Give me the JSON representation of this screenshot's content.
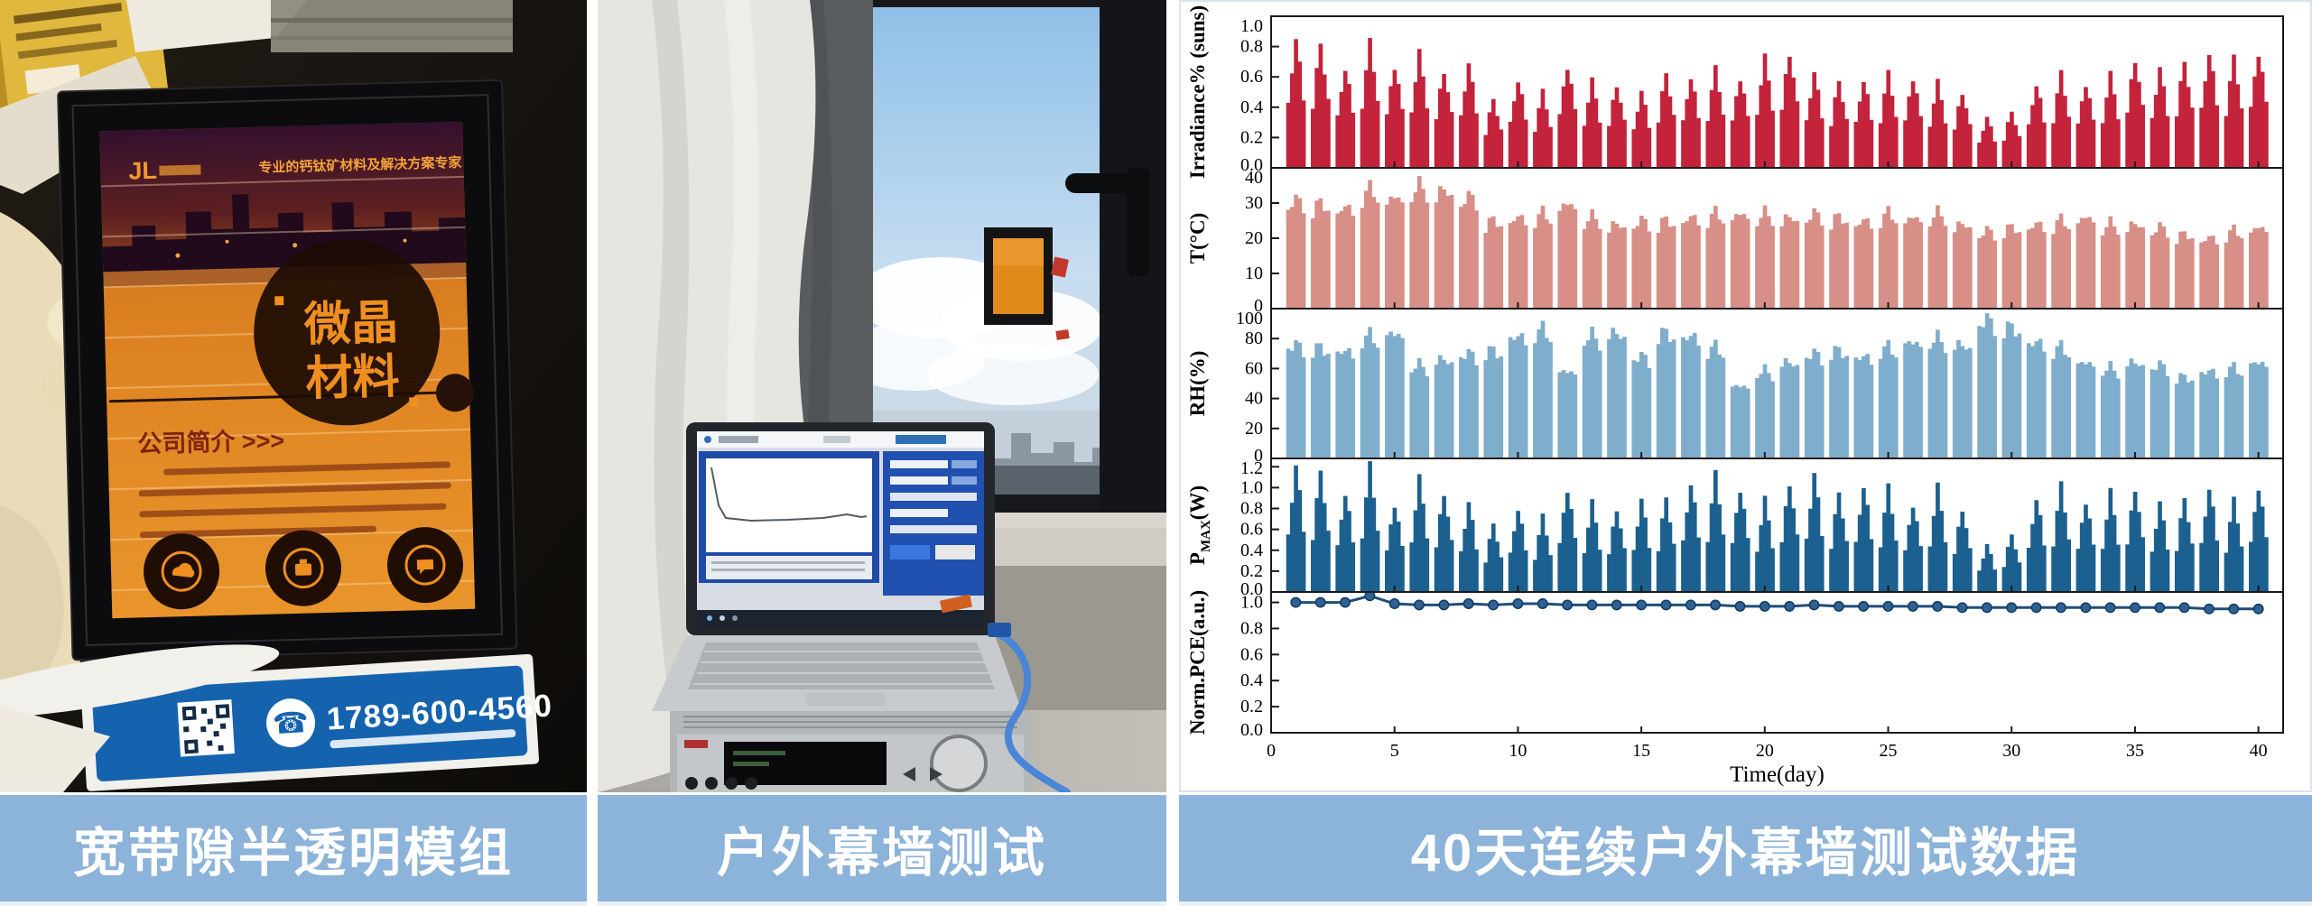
{
  "captions": {
    "left": "宽带隙半透明模组",
    "middle": "户外幕墙测试",
    "right": "40天连续户外幕墙测试数据"
  },
  "colors": {
    "caption_bg": "#8CB3D9",
    "irradiance_bar": "#C3233B",
    "temp_bar": "#D78F87",
    "rh_bar": "#7FADCC",
    "pmax_bar": "#1B608F",
    "pce_line": "#1F4E79",
    "pce_marker": "#2E6295",
    "chart_border": "#D7E4F2",
    "poster_orange": "#E08A1E",
    "card_blue": "#1563AE"
  },
  "icons": {
    "phone": "☎"
  },
  "left_photo": {
    "poster_logo": "JL",
    "poster_header": "专业的钙钛矿材料及解决方案专家",
    "poster_title_line1": "微晶",
    "poster_title_line2": "材料",
    "company_intro_label": "公司简介 >>>",
    "phone_number": "1789-600-4560"
  },
  "chart_data": {
    "type": "multi-panel",
    "title": "40天连续户外幕墙测试数据",
    "xlabel": "Time(day)",
    "xlim": [
      0,
      41
    ],
    "x_ticks": [
      0,
      5,
      10,
      15,
      20,
      25,
      30,
      35,
      40
    ],
    "x_days": [
      1,
      2,
      3,
      4,
      5,
      6,
      7,
      8,
      9,
      10,
      11,
      12,
      13,
      14,
      15,
      16,
      17,
      18,
      19,
      20,
      21,
      22,
      23,
      24,
      25,
      26,
      27,
      28,
      29,
      30,
      31,
      32,
      33,
      34,
      35,
      36,
      37,
      38,
      39,
      40
    ],
    "grid": false,
    "legend": "none",
    "panels": [
      {
        "name": "irradiance",
        "type": "bar",
        "ylabel": "Irradiance% (suns)",
        "ylabel_segments": [
          {
            "text": "Irradiance% (suns)"
          }
        ],
        "ylim": [
          0,
          1.0
        ],
        "yticks": [
          0,
          0.2,
          0.4,
          0.6,
          0.8,
          1.0
        ],
        "ytick_labels": [
          "0.0",
          "0.2",
          "0.4",
          "0.6",
          "0.8",
          "1.0"
        ],
        "color": "#C3233B",
        "daily_peaks": [
          0.84,
          0.81,
          0.66,
          0.82,
          0.68,
          0.75,
          0.64,
          0.68,
          0.45,
          0.58,
          0.5,
          0.68,
          0.57,
          0.55,
          0.5,
          0.62,
          0.6,
          0.65,
          0.6,
          0.72,
          0.76,
          0.62,
          0.57,
          0.58,
          0.62,
          0.6,
          0.56,
          0.5,
          0.33,
          0.37,
          0.55,
          0.62,
          0.56,
          0.61,
          0.72,
          0.65,
          0.7,
          0.76,
          0.72,
          0.77
        ]
      },
      {
        "name": "temperature",
        "type": "bar",
        "ylabel": "T(°C)",
        "ylabel_segments": [
          {
            "text": "T(°C)"
          }
        ],
        "ylim": [
          0,
          40
        ],
        "yticks": [
          0,
          10,
          20,
          30,
          40
        ],
        "ytick_labels": [
          "0",
          "10",
          "20",
          "30",
          "40"
        ],
        "color": "#D78F87",
        "daily_peaks": [
          32,
          31,
          30,
          35,
          33,
          36,
          35,
          33,
          26,
          27,
          28,
          31,
          27,
          25,
          26,
          26,
          27,
          28,
          28,
          28,
          27,
          28,
          27,
          26,
          28,
          27,
          28,
          25,
          23,
          24,
          25,
          26,
          27,
          25,
          25,
          24,
          22,
          21,
          23,
          24
        ]
      },
      {
        "name": "humidity",
        "type": "bar",
        "ylabel": "RH(%)",
        "ylabel_segments": [
          {
            "text": "RH(%)"
          }
        ],
        "ylim": [
          0,
          100
        ],
        "yticks": [
          0,
          20,
          40,
          60,
          80,
          100
        ],
        "ytick_labels": [
          "0",
          "20",
          "40",
          "60",
          "80",
          "100"
        ],
        "color": "#7FADCC",
        "daily_peaks": [
          78,
          76,
          74,
          84,
          86,
          64,
          68,
          72,
          74,
          84,
          88,
          60,
          84,
          86,
          70,
          86,
          84,
          76,
          50,
          60,
          66,
          72,
          74,
          70,
          76,
          80,
          82,
          78,
          95,
          90,
          80,
          76,
          66,
          62,
          66,
          64,
          56,
          60,
          62,
          66
        ]
      },
      {
        "name": "pmax",
        "type": "bar",
        "ylabel": "P_MAX(W)",
        "ylabel_segments": [
          {
            "text": "P"
          },
          {
            "text": "MAX",
            "sub": true
          },
          {
            "text": "(W)"
          }
        ],
        "ylim": [
          0,
          1.28
        ],
        "yticks": [
          0,
          0.2,
          0.4,
          0.6,
          0.8,
          1.0,
          1.2
        ],
        "ytick_labels": [
          "0.0",
          "0.2",
          "0.4",
          "0.6",
          "0.8",
          "1.0",
          "1.2"
        ],
        "color": "#1B608F",
        "daily_peaks": [
          1.2,
          1.15,
          0.95,
          1.2,
          0.85,
          1.08,
          0.95,
          0.85,
          0.65,
          0.8,
          0.72,
          1.0,
          0.85,
          0.8,
          0.88,
          0.9,
          1.05,
          1.12,
          1.0,
          0.88,
          1.05,
          1.12,
          0.95,
          1.02,
          1.0,
          0.85,
          1.0,
          0.8,
          0.45,
          0.55,
          0.9,
          1.02,
          0.88,
          0.95,
          1.0,
          0.85,
          0.9,
          1.0,
          0.88,
          1.02
        ]
      },
      {
        "name": "norm_pce",
        "type": "line",
        "ylabel": "Norm.PCE(a.u.)",
        "ylabel_segments": [
          {
            "text": "Norm.PCE(a.u.)"
          }
        ],
        "ylim": [
          0,
          1.08
        ],
        "yticks": [
          0,
          0.2,
          0.4,
          0.6,
          0.8,
          1.0
        ],
        "ytick_labels": [
          "0.0",
          "0.2",
          "0.4",
          "0.6",
          "0.8",
          "1.0"
        ],
        "color": "#1F4E79",
        "values": [
          1.0,
          1.0,
          1.0,
          1.05,
          0.99,
          0.98,
          0.98,
          0.99,
          0.98,
          0.99,
          0.99,
          0.98,
          0.98,
          0.98,
          0.98,
          0.98,
          0.98,
          0.98,
          0.97,
          0.97,
          0.97,
          0.98,
          0.97,
          0.97,
          0.97,
          0.97,
          0.97,
          0.96,
          0.96,
          0.96,
          0.96,
          0.96,
          0.96,
          0.96,
          0.96,
          0.96,
          0.96,
          0.95,
          0.95,
          0.95
        ]
      }
    ],
    "render_hints": {
      "bars_per_day": 5,
      "profiles": {
        "irradiance": [
          0.5,
          0.78,
          1.0,
          0.8,
          0.55
        ],
        "temperature": [
          0.86,
          0.95,
          1.0,
          0.94,
          0.88
        ],
        "humidity": [
          0.92,
          0.97,
          1.0,
          0.95,
          0.9
        ],
        "pmax": [
          0.45,
          0.75,
          1.0,
          0.78,
          0.5
        ]
      }
    }
  }
}
